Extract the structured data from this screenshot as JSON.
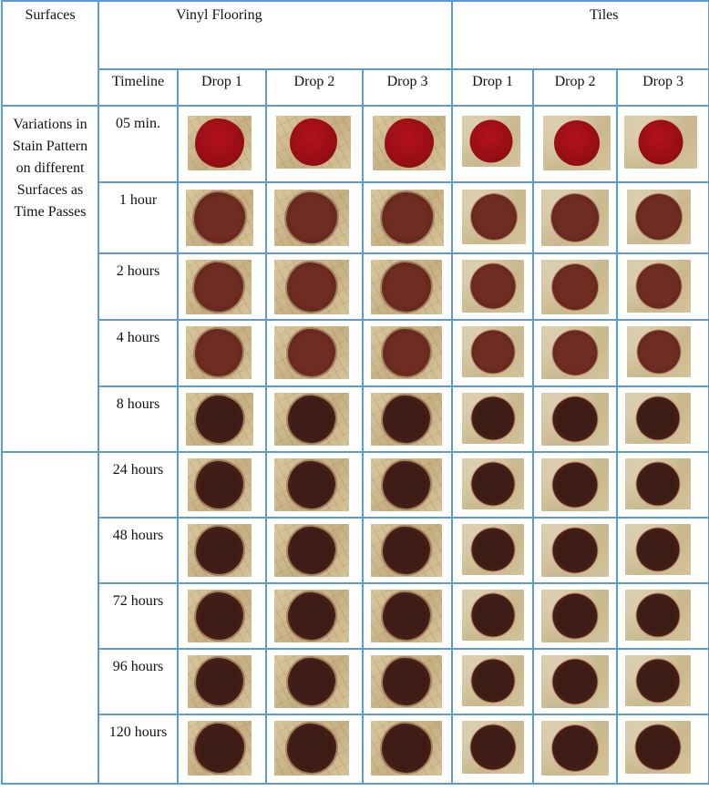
{
  "header": {
    "surfaces_label": "Surfaces",
    "vinyl_label": "Vinyl Flooring",
    "tiles_label": "Tiles",
    "timeline_label": "Timeline",
    "drop_labels": [
      "Drop 1",
      "Drop 2",
      "Drop 3",
      "Drop 1",
      "Drop 2",
      "Drop 3"
    ]
  },
  "row_group_label": "Variations in Stain Pattern on different Surfaces as Time Passes",
  "timeline": [
    "05 min.",
    "1 hour",
    "2 hours",
    "4 hours",
    "8 hours",
    "24 hours",
    "48 hours",
    "72 hours",
    "96 hours",
    "120 hours"
  ],
  "colors": {
    "border": "#5b9bd5",
    "fresh_stain": "#b3121b",
    "dried_stain_early": "#6e2c22",
    "dried_stain_late": "#3e1c16"
  }
}
